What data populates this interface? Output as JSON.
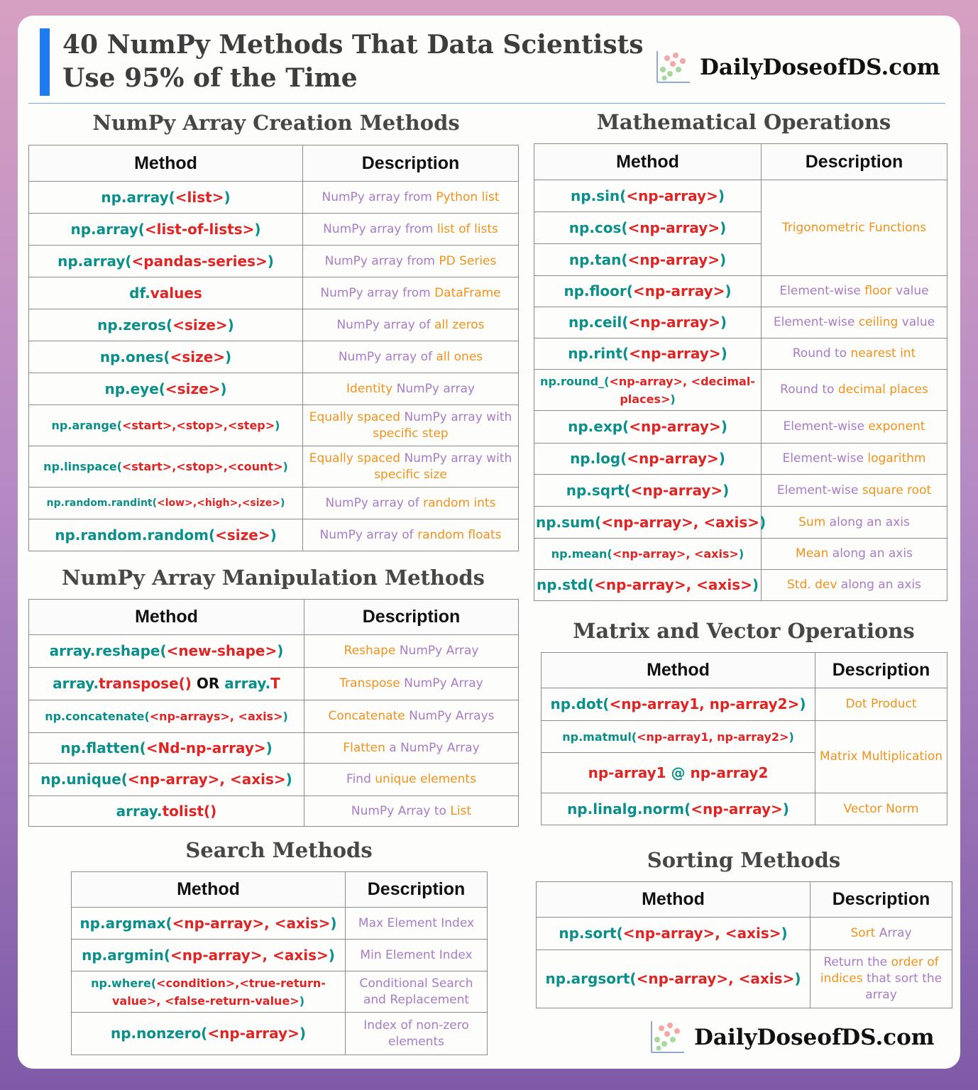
{
  "header": {
    "title_line1": "40 NumPy Methods That Data Scientists",
    "title_line2": "Use 95% of the Time",
    "brand": "DailyDoseofDS.com",
    "footer_brand": "DailyDoseofDS.com"
  },
  "col_method": "Method",
  "col_description": "Description",
  "creation": {
    "title": "NumPy Array Creation Methods",
    "rows": [
      {
        "m": [
          [
            "teal",
            "np.array("
          ],
          [
            "red",
            "<list>"
          ],
          [
            "teal",
            ")"
          ]
        ],
        "d": [
          [
            "p",
            "NumPy array from "
          ],
          [
            "o",
            "Python list"
          ]
        ]
      },
      {
        "m": [
          [
            "teal",
            "np.array("
          ],
          [
            "red",
            "<list-of-lists>"
          ],
          [
            "teal",
            ")"
          ]
        ],
        "d": [
          [
            "p",
            "NumPy array from "
          ],
          [
            "o",
            "list of lists"
          ]
        ]
      },
      {
        "m": [
          [
            "teal",
            "np.array("
          ],
          [
            "red",
            "<pandas-series>"
          ],
          [
            "teal",
            ")"
          ]
        ],
        "d": [
          [
            "p",
            "NumPy array from "
          ],
          [
            "o",
            "PD Series"
          ]
        ]
      },
      {
        "m": [
          [
            "teal",
            "df."
          ],
          [
            "red",
            "values"
          ]
        ],
        "d": [
          [
            "p",
            "NumPy array from "
          ],
          [
            "o",
            "DataFrame"
          ]
        ]
      },
      {
        "m": [
          [
            "teal",
            "np.zeros("
          ],
          [
            "red",
            "<size>"
          ],
          [
            "teal",
            ")"
          ]
        ],
        "d": [
          [
            "p",
            "NumPy array of "
          ],
          [
            "o",
            "all zeros"
          ]
        ]
      },
      {
        "m": [
          [
            "teal",
            "np.ones("
          ],
          [
            "red",
            "<size>"
          ],
          [
            "teal",
            ")"
          ]
        ],
        "d": [
          [
            "p",
            "NumPy array of "
          ],
          [
            "o",
            "all ones"
          ]
        ]
      },
      {
        "m": [
          [
            "teal",
            "np.eye("
          ],
          [
            "red",
            "<size>"
          ],
          [
            "teal",
            ")"
          ]
        ],
        "d": [
          [
            "o",
            "Identity "
          ],
          [
            "p",
            "NumPy array"
          ]
        ]
      },
      {
        "m": [
          [
            "teal",
            "np.arange("
          ],
          [
            "red",
            "<start>,<stop>,<step>"
          ],
          [
            "teal",
            ")"
          ]
        ],
        "d": [
          [
            "o",
            "Equally spaced "
          ],
          [
            "p",
            "NumPy array with "
          ],
          [
            "o",
            "specific step"
          ]
        ]
      },
      {
        "m": [
          [
            "teal",
            "np.linspace("
          ],
          [
            "red",
            "<start>,<stop>,<count>"
          ],
          [
            "teal",
            ")"
          ]
        ],
        "d": [
          [
            "o",
            "Equally spaced "
          ],
          [
            "p",
            "NumPy array with "
          ],
          [
            "o",
            "specific size"
          ]
        ]
      },
      {
        "m": [
          [
            "teal",
            "np.random.randint("
          ],
          [
            "red",
            "<low>,<high>,<size>"
          ],
          [
            "teal",
            ")"
          ]
        ],
        "d": [
          [
            "p",
            "NumPy array of "
          ],
          [
            "o",
            "random ints"
          ]
        ]
      },
      {
        "m": [
          [
            "teal",
            "np.random.random("
          ],
          [
            "red",
            "<size>"
          ],
          [
            "teal",
            ")"
          ]
        ],
        "d": [
          [
            "p",
            "NumPy array of "
          ],
          [
            "o",
            "random floats"
          ]
        ]
      }
    ]
  },
  "manipulation": {
    "title": "NumPy Array Manipulation Methods",
    "rows": [
      {
        "m": [
          [
            "teal",
            "array.reshape("
          ],
          [
            "red",
            "<new-shape>"
          ],
          [
            "teal",
            ")"
          ]
        ],
        "d": [
          [
            "o",
            "Reshape "
          ],
          [
            "p",
            "NumPy Array"
          ]
        ]
      },
      {
        "m": [
          [
            "teal",
            "array."
          ],
          [
            "red",
            "transpose()"
          ],
          [
            "blk",
            " OR "
          ],
          [
            "teal",
            "array."
          ],
          [
            "red",
            "T"
          ]
        ],
        "d": [
          [
            "o",
            "Transpose "
          ],
          [
            "p",
            "NumPy Array"
          ]
        ]
      },
      {
        "m": [
          [
            "teal",
            "np.concatenate("
          ],
          [
            "red",
            "<np-arrays>, <axis>"
          ],
          [
            "teal",
            ")"
          ]
        ],
        "d": [
          [
            "o",
            "Concatenate "
          ],
          [
            "p",
            "NumPy Arrays"
          ]
        ]
      },
      {
        "m": [
          [
            "teal",
            "np.flatten("
          ],
          [
            "red",
            "<Nd-np-array>"
          ],
          [
            "teal",
            ")"
          ]
        ],
        "d": [
          [
            "o",
            "Flatten "
          ],
          [
            "p",
            "a NumPy Array"
          ]
        ]
      },
      {
        "m": [
          [
            "teal",
            "np.unique("
          ],
          [
            "red",
            "<np-array>, <axis>"
          ],
          [
            "teal",
            ")"
          ]
        ],
        "d": [
          [
            "p",
            "Find "
          ],
          [
            "o",
            "unique elements"
          ]
        ]
      },
      {
        "m": [
          [
            "teal",
            "array."
          ],
          [
            "red",
            "tolist()"
          ]
        ],
        "d": [
          [
            "p",
            "NumPy Array to "
          ],
          [
            "o",
            "List"
          ]
        ]
      }
    ]
  },
  "search": {
    "title": "Search Methods",
    "rows": [
      {
        "m": [
          [
            "teal",
            "np.argmax("
          ],
          [
            "red",
            "<np-array>, <axis>"
          ],
          [
            "teal",
            ")"
          ]
        ],
        "d": [
          [
            "p",
            "Max Element Index"
          ]
        ]
      },
      {
        "m": [
          [
            "teal",
            "np.argmin("
          ],
          [
            "red",
            "<np-array>, <axis>"
          ],
          [
            "teal",
            ")"
          ]
        ],
        "d": [
          [
            "p",
            "Min Element Index"
          ]
        ]
      },
      {
        "m": [
          [
            "teal",
            "np.where("
          ],
          [
            "red",
            "<condition>,<true-return-value>, <false-return-value>"
          ],
          [
            "teal",
            ")"
          ]
        ],
        "d": [
          [
            "p",
            "Conditional Search and Replacement"
          ]
        ]
      },
      {
        "m": [
          [
            "teal",
            "np.nonzero("
          ],
          [
            "red",
            "<np-array>"
          ],
          [
            "teal",
            ")"
          ]
        ],
        "d": [
          [
            "p",
            "Index of non-zero elements"
          ]
        ]
      }
    ]
  },
  "math": {
    "title": "Mathematical Operations",
    "trig_desc": "Trigonometric Functions",
    "rows": [
      {
        "m": [
          [
            "teal",
            "np.sin("
          ],
          [
            "red",
            "<np-array>"
          ],
          [
            "teal",
            ")"
          ]
        ]
      },
      {
        "m": [
          [
            "teal",
            "np.cos("
          ],
          [
            "red",
            "<np-array>"
          ],
          [
            "teal",
            ")"
          ]
        ]
      },
      {
        "m": [
          [
            "teal",
            "np.tan("
          ],
          [
            "red",
            "<np-array>"
          ],
          [
            "teal",
            ")"
          ]
        ]
      },
      {
        "m": [
          [
            "teal",
            "np.floor("
          ],
          [
            "red",
            "<np-array>"
          ],
          [
            "teal",
            ")"
          ]
        ],
        "d": [
          [
            "p",
            "Element-wise "
          ],
          [
            "o",
            "floor"
          ],
          [
            "p",
            " value"
          ]
        ]
      },
      {
        "m": [
          [
            "teal",
            "np.ceil("
          ],
          [
            "red",
            "<np-array>"
          ],
          [
            "teal",
            ")"
          ]
        ],
        "d": [
          [
            "p",
            "Element-wise "
          ],
          [
            "o",
            "ceiling"
          ],
          [
            "p",
            " value"
          ]
        ]
      },
      {
        "m": [
          [
            "teal",
            "np.rint("
          ],
          [
            "red",
            "<np-array>"
          ],
          [
            "teal",
            ")"
          ]
        ],
        "d": [
          [
            "p",
            "Round to "
          ],
          [
            "o",
            "nearest int"
          ]
        ]
      },
      {
        "m": [
          [
            "teal",
            "np.round_("
          ],
          [
            "red",
            "<np-array>, <decimal-places>"
          ],
          [
            "teal",
            ")"
          ]
        ],
        "d": [
          [
            "p",
            "Round to "
          ],
          [
            "o",
            "decimal places"
          ]
        ]
      },
      {
        "m": [
          [
            "teal",
            "np.exp("
          ],
          [
            "red",
            "<np-array>"
          ],
          [
            "teal",
            ")"
          ]
        ],
        "d": [
          [
            "p",
            "Element-wise "
          ],
          [
            "o",
            "exponent"
          ]
        ]
      },
      {
        "m": [
          [
            "teal",
            "np.log("
          ],
          [
            "red",
            "<np-array>"
          ],
          [
            "teal",
            ")"
          ]
        ],
        "d": [
          [
            "p",
            "Element-wise "
          ],
          [
            "o",
            "logarithm"
          ]
        ]
      },
      {
        "m": [
          [
            "teal",
            "np.sqrt("
          ],
          [
            "red",
            "<np-array>"
          ],
          [
            "teal",
            ")"
          ]
        ],
        "d": [
          [
            "p",
            "Element-wise "
          ],
          [
            "o",
            "square root"
          ]
        ]
      },
      {
        "m": [
          [
            "teal",
            "np.sum("
          ],
          [
            "red",
            "<np-array>, <axis>"
          ],
          [
            "teal",
            ")"
          ]
        ],
        "d": [
          [
            "o",
            "Sum "
          ],
          [
            "p",
            "along an axis"
          ]
        ]
      },
      {
        "m": [
          [
            "teal",
            "np.mean("
          ],
          [
            "red",
            "<np-array>, <axis>"
          ],
          [
            "teal",
            ")"
          ]
        ],
        "d": [
          [
            "o",
            "Mean "
          ],
          [
            "p",
            "along an axis"
          ]
        ]
      },
      {
        "m": [
          [
            "teal",
            "np.std("
          ],
          [
            "red",
            "<np-array>, <axis>"
          ],
          [
            "teal",
            ")"
          ]
        ],
        "d": [
          [
            "o",
            "Std. dev "
          ],
          [
            "p",
            "along an axis"
          ]
        ]
      }
    ]
  },
  "matrix": {
    "title": "Matrix and Vector Operations",
    "mult_desc": "Matrix Multiplication",
    "rows": [
      {
        "m": [
          [
            "teal",
            "np.dot("
          ],
          [
            "red",
            "<np-array1, np-array2>"
          ],
          [
            "teal",
            ")"
          ]
        ],
        "d": "Dot Product"
      },
      {
        "m": [
          [
            "teal",
            "np.matmul("
          ],
          [
            "red",
            "<np-array1, np-array2>"
          ],
          [
            "teal",
            ")"
          ]
        ]
      },
      {
        "m": [
          [
            "red",
            "np-array1 "
          ],
          [
            "teal",
            "@"
          ],
          [
            "red",
            " np-array2"
          ]
        ]
      },
      {
        "m": [
          [
            "teal",
            "np.linalg.norm("
          ],
          [
            "red",
            "<np-array>"
          ],
          [
            "teal",
            ")"
          ]
        ],
        "d": "Vector Norm"
      }
    ]
  },
  "sorting": {
    "title": "Sorting Methods",
    "rows": [
      {
        "m": [
          [
            "teal",
            "np.sort("
          ],
          [
            "red",
            "<np-array>, <axis>"
          ],
          [
            "teal",
            ")"
          ]
        ],
        "d": [
          [
            "o",
            "Sort "
          ],
          [
            "p",
            "Array"
          ]
        ]
      },
      {
        "m": [
          [
            "teal",
            "np.argsort("
          ],
          [
            "red",
            "<np-array>, <axis>"
          ],
          [
            "teal",
            ")"
          ]
        ],
        "d": [
          [
            "p",
            "Return the "
          ],
          [
            "o",
            "order of indices"
          ],
          [
            "p",
            " that sort the array"
          ]
        ]
      }
    ]
  },
  "colors": {
    "teal": "#0b8f8a",
    "red": "#e02424",
    "orange": "#f0921b",
    "purple": "#a87cc6",
    "accent": "#1f7cf0"
  }
}
